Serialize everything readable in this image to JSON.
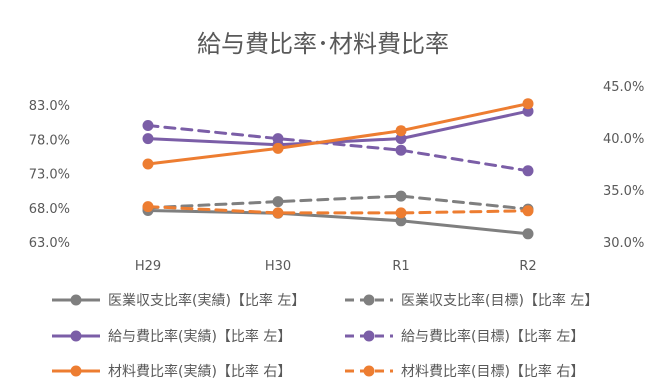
{
  "chart_data": {
    "type": "line",
    "title": "給与費比率･材料費比率",
    "categories": [
      "H29",
      "H30",
      "R1",
      "R2"
    ],
    "y_left": {
      "ticks": [
        "63.0%",
        "68.0%",
        "73.0%",
        "78.0%",
        "83.0%"
      ],
      "range": [
        63.0,
        83.0
      ]
    },
    "y_right": {
      "ticks": [
        "30.0%",
        "35.0%",
        "40.0%",
        "45.0%"
      ],
      "range": [
        30.0,
        45.0
      ]
    },
    "grid": false,
    "legend_position": "bottom",
    "series": [
      {
        "name": "医業収支比率(実績)【比率 左】",
        "axis": "left",
        "dashed": false,
        "color": "#7f7f7f",
        "values": [
          67.6,
          67.2,
          66.1,
          64.2
        ]
      },
      {
        "name": "医業収支比率(目標)【比率 左】",
        "axis": "left",
        "dashed": true,
        "color": "#7f7f7f",
        "values": [
          68.0,
          68.9,
          69.7,
          67.8
        ]
      },
      {
        "name": "給与費比率(実績)【比率 左】",
        "axis": "left",
        "dashed": false,
        "color": "#7b5ea7",
        "values": [
          78.1,
          77.2,
          78.1,
          82.1
        ]
      },
      {
        "name": "給与費比率(目標)【比率 左】",
        "axis": "left",
        "dashed": true,
        "color": "#7b5ea7",
        "values": [
          80.0,
          78.1,
          76.4,
          73.4
        ]
      },
      {
        "name": "材料費比率(実績)【比率 右】",
        "axis": "right",
        "dashed": false,
        "color": "#ed7d31",
        "values": [
          37.5,
          39.0,
          40.7,
          43.3
        ]
      },
      {
        "name": "材料費比率(目標)【比率 右】",
        "axis": "right",
        "dashed": true,
        "color": "#ed7d31",
        "values": [
          33.4,
          32.8,
          32.8,
          33.0
        ]
      }
    ]
  }
}
